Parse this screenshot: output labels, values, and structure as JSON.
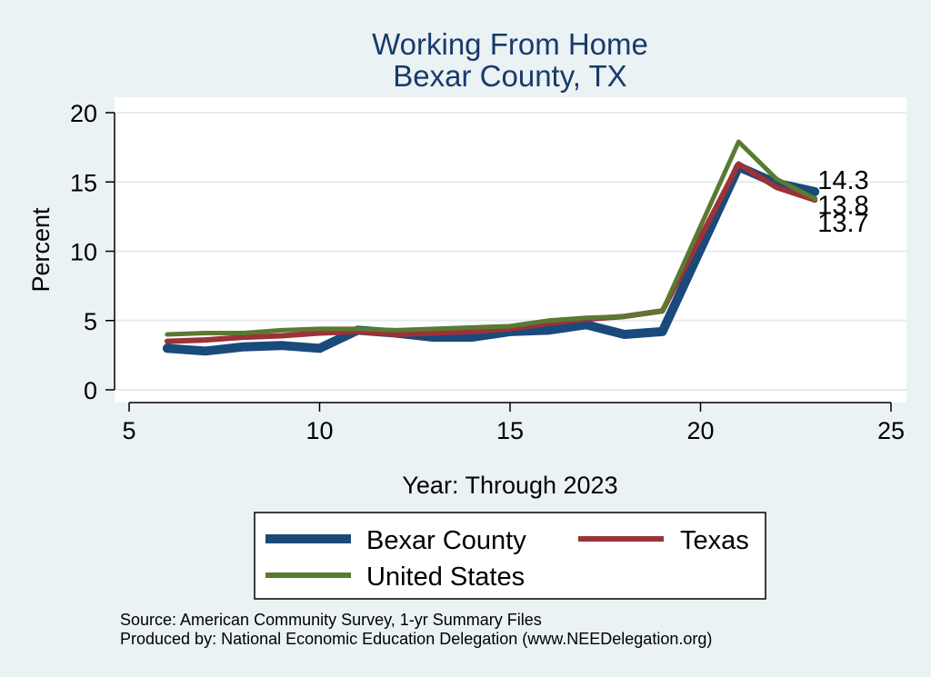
{
  "chart_data": {
    "type": "line",
    "title": "Working From Home",
    "subtitle": "Bexar County, TX",
    "xlabel": "Year: Through 2023",
    "ylabel": "Percent",
    "xlim": [
      5,
      25
    ],
    "ylim": [
      0,
      20
    ],
    "xticks": [
      5,
      10,
      15,
      20,
      25
    ],
    "yticks": [
      0,
      5,
      10,
      15,
      20
    ],
    "grid": true,
    "legend_position": "bottom",
    "x": [
      6,
      7,
      8,
      9,
      10,
      11,
      12,
      13,
      14,
      15,
      16,
      17,
      18,
      19,
      21,
      22,
      23
    ],
    "series": [
      {
        "name": "Bexar County",
        "color": "#1a4a7a",
        "values": [
          3.0,
          2.8,
          3.1,
          3.2,
          3.0,
          4.3,
          4.1,
          3.8,
          3.8,
          4.2,
          4.3,
          4.7,
          4.0,
          4.2,
          16.1,
          14.9,
          14.3
        ],
        "end_label": "14.3"
      },
      {
        "name": "Texas",
        "color": "#9b3238",
        "values": [
          3.5,
          3.6,
          3.8,
          3.9,
          4.1,
          4.2,
          4.0,
          4.1,
          4.2,
          4.4,
          4.8,
          5.1,
          5.3,
          5.7,
          16.3,
          14.6,
          13.7
        ],
        "end_label": "13.7"
      },
      {
        "name": "United States",
        "color": "#5a7a32",
        "values": [
          4.0,
          4.1,
          4.1,
          4.3,
          4.4,
          4.4,
          4.3,
          4.4,
          4.5,
          4.6,
          5.0,
          5.2,
          5.3,
          5.7,
          17.9,
          15.2,
          13.8
        ],
        "end_label": "13.8"
      }
    ]
  },
  "notes": {
    "source": "Source: American Community Survey, 1-yr Summary Files",
    "produced_by": "Produced by: National Economic Education Delegation (www.NEEDelegation.org)"
  }
}
